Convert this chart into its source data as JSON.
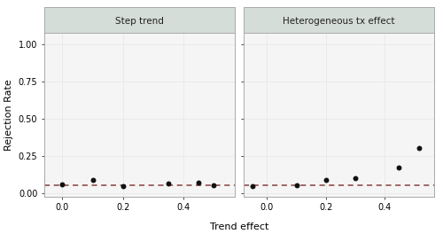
{
  "left_panel": {
    "title": "Step trend",
    "x": [
      0.0,
      0.1,
      0.2,
      0.35,
      0.45,
      0.5
    ],
    "y": [
      0.055,
      0.09,
      0.048,
      0.065,
      0.07,
      0.052
    ]
  },
  "right_panel": {
    "title": "Heterogeneous tx effect",
    "x": [
      -0.05,
      0.1,
      0.2,
      0.3,
      0.45,
      0.52
    ],
    "y": [
      0.048,
      0.052,
      0.09,
      0.1,
      0.17,
      0.305
    ]
  },
  "hline_y": 0.05,
  "hline_color": "#7B2D2D",
  "xlabel": "Trend effect",
  "ylabel": "Rejection Rate",
  "ylim": [
    -0.025,
    1.08
  ],
  "xlim_left": [
    -0.06,
    0.57
  ],
  "xlim_right": [
    -0.08,
    0.57
  ],
  "xticks": [
    0.0,
    0.2,
    0.4
  ],
  "yticks": [
    0.0,
    0.25,
    0.5,
    0.75,
    1.0
  ],
  "panel_bg": "#f5f5f5",
  "header_bg": "#d5ddd8",
  "header_text_color": "#222222",
  "grid_color": "#e8e8e8",
  "dot_color": "#111111",
  "dot_size": 18,
  "spine_color": "#aaaaaa",
  "title_fontsize": 7.5,
  "label_fontsize": 8,
  "tick_fontsize": 7
}
